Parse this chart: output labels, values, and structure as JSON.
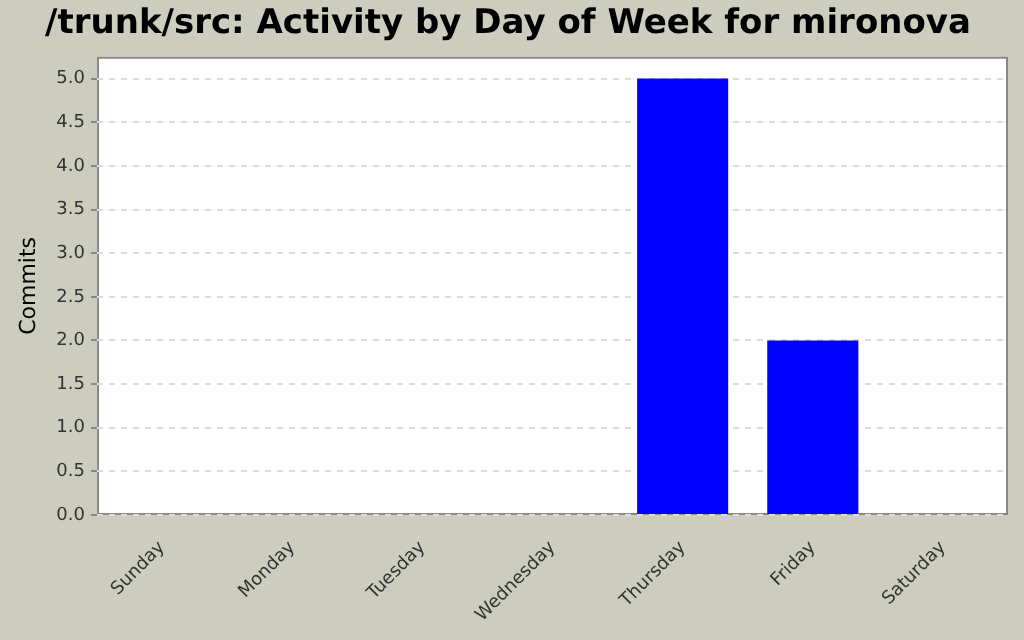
{
  "chart_data": {
    "type": "bar",
    "title": "/trunk/src: Activity by Day of Week for mironova",
    "ylabel": "Commits",
    "categories": [
      "Sunday",
      "Monday",
      "Tuesday",
      "Wednesday",
      "Thursday",
      "Friday",
      "Saturday"
    ],
    "values": [
      0,
      0,
      0,
      0,
      5,
      2,
      0
    ],
    "color": "#0000ff",
    "ylim": [
      0,
      5.25
    ],
    "yticks": [
      {
        "value": 0,
        "label": "0.0"
      },
      {
        "value": 0.5,
        "label": "0.5"
      },
      {
        "value": 1,
        "label": "1.0"
      },
      {
        "value": 1.5,
        "label": "1.5"
      },
      {
        "value": 2,
        "label": "2.0"
      },
      {
        "value": 2.5,
        "label": "2.5"
      },
      {
        "value": 3,
        "label": "3.0"
      },
      {
        "value": 3.5,
        "label": "3.5"
      },
      {
        "value": 4,
        "label": "4.0"
      },
      {
        "value": 4.5,
        "label": "4.5"
      },
      {
        "value": 5,
        "label": "5.0"
      }
    ],
    "grid": "y",
    "legend": false
  }
}
